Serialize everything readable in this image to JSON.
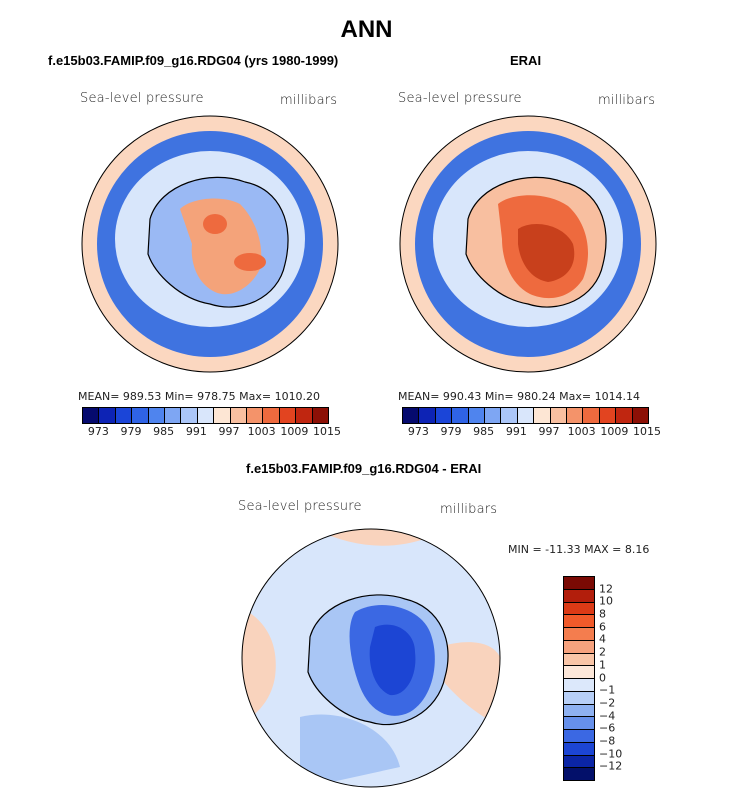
{
  "title": "ANN",
  "panels": [
    {
      "title": "f.e15b03.FAMIP.f09_g16.RDG04 (yrs 1980-1999)",
      "field_label": "Sea-level pressure",
      "units": "millibars",
      "stats": "MEAN= 989.53  Min= 978.75  Max= 1010.20",
      "colorbar": {
        "labels": [
          "973",
          "979",
          "985",
          "991",
          "997",
          "1003",
          "1009",
          "1015"
        ],
        "colors": [
          "#050a6e",
          "#0d23b5",
          "#1b45d8",
          "#2f63e6",
          "#4f84ee",
          "#7ea6f3",
          "#abc6f8",
          "#d9e6fb",
          "#fde6d4",
          "#f8bfa0",
          "#f4936a",
          "#ee6a3e",
          "#e24420",
          "#c02610",
          "#8c1006"
        ]
      },
      "map_regions": {
        "ocean_ring": "#3f73e0",
        "outer_belt": "#fbd7c0",
        "mid_belt": "#d8e6fb",
        "antarctica_low": "#9ab9f4",
        "plateau": "#f4a37a",
        "high_core": "#ee6a3e"
      }
    },
    {
      "title": "ERAI",
      "field_label": "Sea-level pressure",
      "units": "millibars",
      "stats": "MEAN= 990.43  Min= 980.24  Max= 1014.14",
      "colorbar": {
        "labels": [
          "973",
          "979",
          "985",
          "991",
          "997",
          "1003",
          "1009",
          "1015"
        ],
        "colors": [
          "#050a6e",
          "#0d23b5",
          "#1b45d8",
          "#2f63e6",
          "#4f84ee",
          "#7ea6f3",
          "#abc6f8",
          "#d9e6fb",
          "#fde6d4",
          "#f8bfa0",
          "#f4936a",
          "#ee6a3e",
          "#e24420",
          "#c02610",
          "#8c1006"
        ]
      },
      "map_regions": {
        "ocean_ring": "#3f73e0",
        "outer_belt": "#fbd7c0",
        "mid_belt": "#d8e6fb",
        "antarctica_low": "#f8bfa0",
        "plateau": "#ee6a3e",
        "high_core": "#c8401c"
      }
    }
  ],
  "difference_panel": {
    "title": "f.e15b03.FAMIP.f09_g16.RDG04 - ERAI",
    "field_label": "Sea-level pressure",
    "units": "millibars",
    "minmax": "MIN = -11.33 MAX =   8.16",
    "colorbar": {
      "labels": [
        "12",
        "10",
        "8",
        "6",
        "4",
        "2",
        "1",
        "0",
        "−1",
        "−2",
        "−4",
        "−6",
        "−8",
        "−10",
        "−12"
      ],
      "colors": [
        "#7a0a04",
        "#b21e0c",
        "#dc3a16",
        "#f15a2a",
        "#f47d4e",
        "#f6a27e",
        "#f9c5a7",
        "#fce7d9",
        "#dce8fb",
        "#b7cff7",
        "#8eb1f1",
        "#6690eb",
        "#3b68e3",
        "#1c45d4",
        "#0b25a6",
        "#03106a"
      ]
    },
    "map_regions": {
      "background": "#d8e6fb",
      "warm_patch": "#f9d3bd",
      "cool_patch": "#a9c6f5",
      "interior_low": "#3b68e3",
      "interior_core": "#1c45d4"
    }
  }
}
